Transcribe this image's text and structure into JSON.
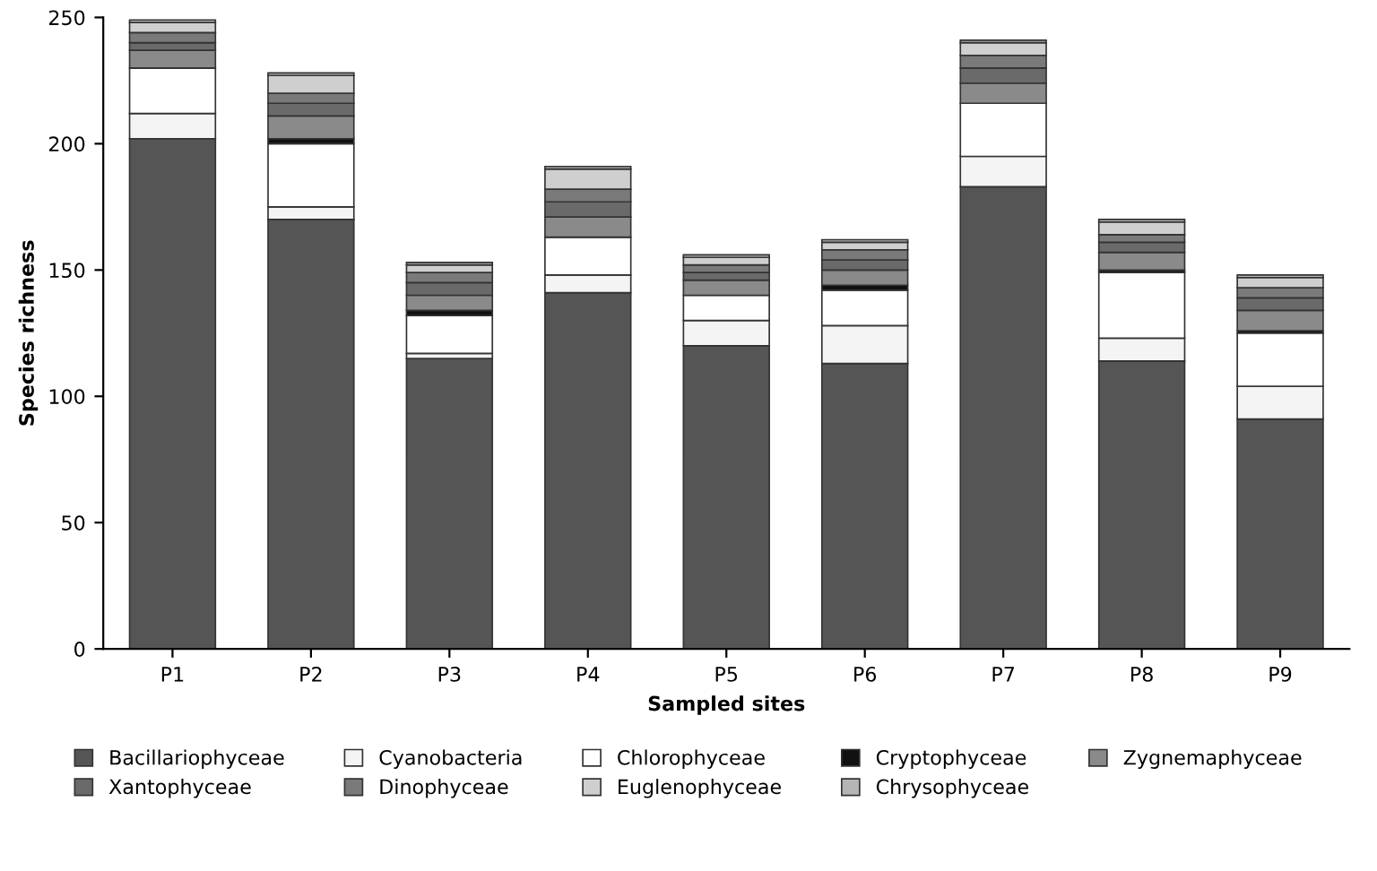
{
  "chart_data": {
    "type": "bar",
    "stacked": true,
    "xlabel": "Sampled sites",
    "ylabel": "Species richness",
    "categories": [
      "P1",
      "P2",
      "P3",
      "P4",
      "P5",
      "P6",
      "P7",
      "P8",
      "P9"
    ],
    "series": [
      {
        "name": "Bacillariophyceae",
        "color": "#555555",
        "values": [
          202,
          170,
          115,
          141,
          120,
          113,
          183,
          114,
          91
        ]
      },
      {
        "name": "Cyanobacteria",
        "color": "#f4f4f4",
        "values": [
          10,
          5,
          2,
          7,
          10,
          15,
          12,
          9,
          13
        ]
      },
      {
        "name": "Chlorophyceae",
        "color": "#ffffff",
        "values": [
          18,
          25,
          15,
          15,
          10,
          14,
          21,
          26,
          21
        ]
      },
      {
        "name": "Cryptophyceae",
        "color": "#111111",
        "values": [
          0,
          2,
          2,
          0,
          0,
          2,
          0,
          1,
          1
        ]
      },
      {
        "name": "Zygnemaphyceae",
        "color": "#8a8a8a",
        "values": [
          7,
          9,
          6,
          8,
          6,
          6,
          8,
          7,
          8
        ]
      },
      {
        "name": "Xantophyceae",
        "color": "#6a6a6a",
        "values": [
          3,
          5,
          5,
          6,
          3,
          4,
          6,
          4,
          5
        ]
      },
      {
        "name": "Dinophyceae",
        "color": "#7a7a7a",
        "values": [
          4,
          4,
          4,
          5,
          3,
          4,
          5,
          3,
          4
        ]
      },
      {
        "name": "Euglenophyceae",
        "color": "#cfcfcf",
        "values": [
          4,
          7,
          3,
          8,
          3,
          3,
          5,
          5,
          4
        ]
      },
      {
        "name": "Chrysophyceae",
        "color": "#b5b5b5",
        "values": [
          1,
          1,
          1,
          1,
          1,
          1,
          1,
          1,
          1
        ]
      }
    ],
    "ylim": [
      0,
      250
    ],
    "yticks": [
      0,
      50,
      100,
      150,
      200,
      250
    ],
    "grid": false,
    "legend": "bottom"
  }
}
